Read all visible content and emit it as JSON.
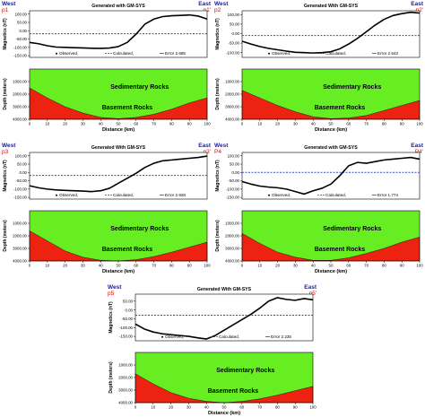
{
  "colors": {
    "sediment": "#66ee22",
    "basement": "#ee2211",
    "observed": "#000000",
    "calculated": "#3344cc",
    "west_east": "#1a1aa8",
    "profile_label": "#cc1111"
  },
  "chart_data": [
    {
      "type": "line",
      "title": "Generated with GM-SYS",
      "west_label": "West",
      "east_label": "East",
      "profile_start": "p1",
      "profile_end": "p1'",
      "ylabel": "Magnetics (nT)",
      "yticks": [
        "100.00",
        "50.00",
        "0.00",
        "-50.00",
        "-100.00",
        "-150.00"
      ],
      "ylim": [
        -160,
        120
      ],
      "legend": {
        "observed": "Observed,",
        "calculated": "Calculated,",
        "error": "Error 2.685"
      },
      "series": [
        {
          "name": "Observed",
          "x": [
            0,
            5,
            10,
            15,
            20,
            25,
            30,
            35,
            40,
            45,
            50,
            55,
            60,
            65,
            70,
            75,
            80,
            85,
            90,
            95,
            100
          ],
          "values": [
            -70,
            -78,
            -90,
            -98,
            -100,
            -102,
            -103,
            -105,
            -106,
            -104,
            -95,
            -70,
            -20,
            40,
            70,
            85,
            90,
            92,
            95,
            88,
            70
          ]
        },
        {
          "name": "Calculated",
          "x": [
            0,
            100
          ],
          "values": [
            -18,
            -18
          ]
        }
      ],
      "depth": {
        "ylabel": "Depth (meters)",
        "yticks": [
          "1000.00",
          "2000.00",
          "3000.00",
          "4000.00"
        ],
        "ylim": [
          0,
          4000
        ],
        "sediment_label": "Sedimentary Rocks",
        "basement_label": "Basement Rocks",
        "basement_top": {
          "x": [
            0,
            10,
            20,
            30,
            40,
            50,
            60,
            70,
            80,
            90,
            100
          ],
          "depth": [
            1500,
            2300,
            3000,
            3500,
            3850,
            3950,
            3850,
            3600,
            3200,
            2700,
            2300
          ]
        }
      },
      "xlabel": "Distance (km)",
      "xticks": [
        "0",
        "10",
        "20",
        "30",
        "40",
        "50",
        "60",
        "70",
        "80",
        "90",
        "100"
      ]
    },
    {
      "type": "line",
      "title": "Generated With GM-SYS",
      "west_label": "West",
      "east_label": "East",
      "profile_start": "p2",
      "profile_end": "p2'",
      "ylabel": "Magnetics (nT)",
      "yticks": [
        "100.00",
        "50.00",
        "0.00",
        "-50.00",
        "-100.00"
      ],
      "ylim": [
        -125,
        120
      ],
      "legend": {
        "observed": "Observed,",
        "calculated": "Calculated,",
        "error": "Error 2.543"
      },
      "series": [
        {
          "name": "Observed",
          "x": [
            0,
            5,
            10,
            15,
            20,
            25,
            30,
            35,
            40,
            45,
            50,
            55,
            60,
            65,
            70,
            75,
            80,
            85,
            90,
            95,
            100
          ],
          "values": [
            -40,
            -55,
            -68,
            -78,
            -85,
            -92,
            -98,
            -100,
            -102,
            -100,
            -95,
            -80,
            -55,
            -25,
            10,
            45,
            75,
            95,
            105,
            112,
            108
          ]
        },
        {
          "name": "Calculated",
          "x": [
            0,
            100
          ],
          "values": [
            -10,
            -10
          ]
        }
      ],
      "depth": {
        "ylabel": "Depth (meters)",
        "yticks": [
          "1000.00",
          "2000.00",
          "3000.00",
          "4000.00"
        ],
        "ylim": [
          0,
          4000
        ],
        "sediment_label": "Sedimentary Rocks",
        "basement_label": "Basement Rocks",
        "basement_top": {
          "x": [
            0,
            10,
            20,
            30,
            40,
            50,
            60,
            70,
            80,
            90,
            100
          ],
          "depth": [
            1700,
            2300,
            2900,
            3400,
            3800,
            3950,
            3900,
            3700,
            3300,
            2900,
            2500
          ]
        }
      },
      "xlabel": "Distance (km)",
      "xticks": [
        "0",
        "10",
        "20",
        "30",
        "40",
        "50",
        "60",
        "70",
        "80",
        "90",
        "100"
      ]
    },
    {
      "type": "line",
      "title": "Generated With GM-SYS",
      "west_label": "West",
      "east_label": "East",
      "profile_start": "p3",
      "profile_end": "p3'",
      "ylabel": "Magnetics (nT)",
      "yticks": [
        "100.00",
        "50.00",
        "0.00",
        "-50.00",
        "-100.00",
        "-150.00"
      ],
      "ylim": [
        -160,
        120
      ],
      "legend": {
        "observed": "Observed,",
        "calculated": "Calculated,",
        "error": "Error 2.928"
      },
      "series": [
        {
          "name": "Observed",
          "x": [
            0,
            5,
            10,
            15,
            20,
            25,
            30,
            35,
            40,
            45,
            50,
            55,
            60,
            65,
            70,
            75,
            80,
            85,
            90,
            95,
            100
          ],
          "values": [
            -80,
            -92,
            -100,
            -105,
            -108,
            -110,
            -112,
            -115,
            -110,
            -95,
            -65,
            -35,
            -5,
            30,
            55,
            70,
            75,
            80,
            85,
            90,
            98
          ]
        },
        {
          "name": "Calculated",
          "x": [
            0,
            100
          ],
          "values": [
            -18,
            -18
          ]
        }
      ],
      "depth": {
        "ylabel": "Depth (meters)",
        "yticks": [
          "1000.00",
          "2000.00",
          "3000.00",
          "4000.00"
        ],
        "ylim": [
          0,
          4000
        ],
        "sediment_label": "Sedimentary Rocks",
        "basement_label": "Basement Rocks",
        "basement_top": {
          "x": [
            0,
            10,
            20,
            30,
            40,
            50,
            60,
            70,
            80,
            90,
            100
          ],
          "depth": [
            1600,
            2400,
            3200,
            3700,
            3950,
            4000,
            3900,
            3650,
            3300,
            2900,
            2500
          ]
        }
      },
      "xlabel": "Distance (km)",
      "xticks": [
        "0",
        "10",
        "20",
        "30",
        "40",
        "50",
        "60",
        "70",
        "80",
        "90",
        "100"
      ]
    },
    {
      "type": "line",
      "title": "Generated with GM-SYS",
      "west_label": "West",
      "east_label": "East",
      "profile_start": "P4",
      "profile_end": "P4'",
      "ylabel": "Magnetics (nT)",
      "yticks": [
        "100.00",
        "50.00",
        "0.00",
        "-50.00",
        "-100.00",
        "-150.00"
      ],
      "ylim": [
        -160,
        120
      ],
      "legend": {
        "observed": "Observed,",
        "calculated": "Calculated,",
        "error": "Error 1.774"
      },
      "series": [
        {
          "name": "Observed",
          "x": [
            0,
            5,
            10,
            15,
            20,
            25,
            30,
            35,
            40,
            45,
            50,
            55,
            60,
            65,
            70,
            75,
            80,
            85,
            90,
            95,
            100
          ],
          "values": [
            -55,
            -70,
            -82,
            -88,
            -92,
            -100,
            -115,
            -130,
            -110,
            -95,
            -70,
            -20,
            40,
            60,
            55,
            65,
            75,
            80,
            85,
            90,
            80
          ]
        },
        {
          "name": "Calculated",
          "x": [
            0,
            100
          ],
          "values": [
            0,
            0
          ]
        }
      ],
      "depth": {
        "ylabel": "Depth (meters)",
        "yticks": [
          "1000.00",
          "2000.00",
          "3000.00",
          "4000.00"
        ],
        "ylim": [
          0,
          4000
        ],
        "sediment_label": "Sedimentary Rocks",
        "basement_label": "Basement Rocks",
        "basement_top": {
          "x": [
            0,
            10,
            20,
            30,
            40,
            50,
            60,
            70,
            80,
            90,
            100
          ],
          "depth": [
            1800,
            2600,
            3300,
            3700,
            3950,
            3950,
            3750,
            3400,
            3000,
            2500,
            2100
          ]
        }
      },
      "xlabel": "Distance (km)",
      "xticks": [
        "0",
        "10",
        "20",
        "30",
        "40",
        "50",
        "60",
        "70",
        "80",
        "90",
        "100"
      ]
    },
    {
      "type": "line",
      "title": "Generated With GM-SYS",
      "west_label": "West",
      "east_label": "East",
      "profile_start": "p5",
      "profile_end": "p5'",
      "ylabel": "Magnetics (nT)",
      "yticks": [
        "50.00",
        "0.00",
        "-50.00",
        "-100.00",
        "-150.00"
      ],
      "ylim": [
        -175,
        90
      ],
      "legend": {
        "observed": "Observed,",
        "calculated": "Calculated,",
        "error": "Error 2.235"
      },
      "series": [
        {
          "name": "Observed",
          "x": [
            0,
            5,
            10,
            15,
            20,
            25,
            30,
            35,
            40,
            45,
            50,
            55,
            60,
            65,
            70,
            75,
            80,
            85,
            90,
            95,
            100
          ],
          "values": [
            -80,
            -108,
            -125,
            -135,
            -140,
            -145,
            -150,
            -158,
            -165,
            -145,
            -115,
            -85,
            -55,
            -25,
            10,
            50,
            70,
            60,
            55,
            65,
            58
          ]
        },
        {
          "name": "Calculated",
          "x": [
            0,
            100
          ],
          "values": [
            -30,
            -30
          ]
        }
      ],
      "depth": {
        "ylabel": "Depth (meters)",
        "yticks": [
          "1000.00",
          "2000.00",
          "3000.00",
          "4000.00"
        ],
        "ylim": [
          0,
          4000
        ],
        "sediment_label": "Sedimentary Rocks",
        "basement_label": "Basement Rocks",
        "basement_top": {
          "x": [
            0,
            10,
            20,
            30,
            40,
            50,
            60,
            70,
            80,
            90,
            100
          ],
          "depth": [
            1700,
            2500,
            3200,
            3650,
            3900,
            4000,
            3900,
            3700,
            3400,
            3050,
            2700
          ]
        }
      },
      "xlabel": "Distance (km)",
      "xticks": [
        "0",
        "10",
        "20",
        "30",
        "40",
        "50",
        "60",
        "70",
        "80",
        "90",
        "100"
      ]
    }
  ]
}
